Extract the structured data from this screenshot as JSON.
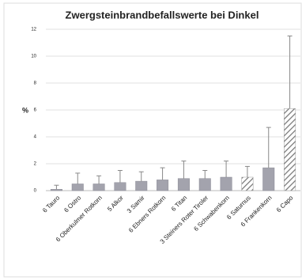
{
  "chart_data": {
    "type": "bar",
    "title": "Zwergsteinbrandbefallswerte bei Dinkel",
    "y_label": "%",
    "categories": [
      "6 Tauro",
      "6 Ostro",
      "6 Oberkulmer Rotkorn",
      "5 Alkor",
      "3 Samir",
      "6 Ebners Rotkorn",
      "6 Titan",
      "3 Steiners Roter Tiroler",
      "6 Schwabenkorn",
      "6 Saturnus",
      "6 Frankenkorn",
      "6 Capo"
    ],
    "values": [
      0.1,
      0.5,
      0.5,
      0.6,
      0.7,
      0.8,
      0.9,
      0.9,
      1.0,
      1.0,
      1.7,
      6.1
    ],
    "errors": [
      0.3,
      0.8,
      0.6,
      0.9,
      0.7,
      0.9,
      1.3,
      0.6,
      1.2,
      0.8,
      3.0,
      5.4
    ],
    "hatched": [
      false,
      false,
      false,
      false,
      false,
      false,
      false,
      false,
      false,
      true,
      false,
      true
    ],
    "color": "#a3a3ad",
    "ylim": [
      0,
      12
    ],
    "yticks": [
      0,
      2,
      4,
      6,
      8,
      10,
      12
    ],
    "grid": true
  }
}
